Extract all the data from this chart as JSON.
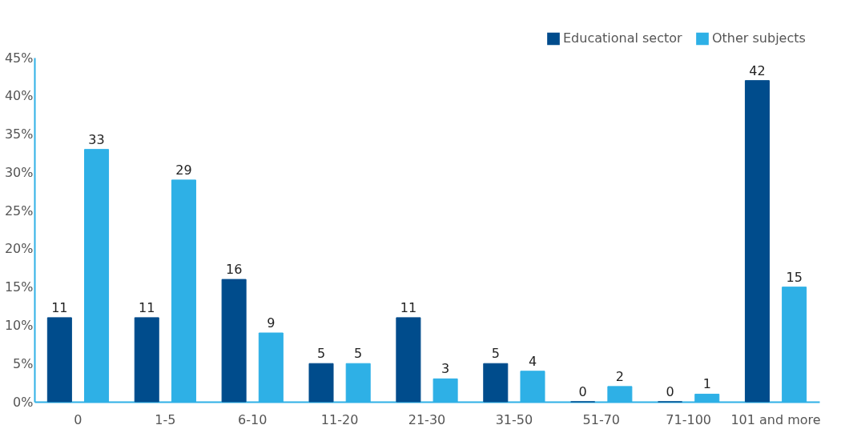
{
  "chart_data": {
    "type": "bar",
    "categories": [
      "0",
      "1-5",
      "6-10",
      "11-20",
      "21-30",
      "31-50",
      "51-70",
      "71-100",
      "101 and more"
    ],
    "series": [
      {
        "name": "Educational sector",
        "color": "#004c8c",
        "values": [
          11,
          11,
          16,
          5,
          11,
          5,
          0,
          0,
          42
        ]
      },
      {
        "name": "Other subjects",
        "color": "#2eb0e6",
        "values": [
          33,
          29,
          9,
          5,
          3,
          4,
          2,
          1,
          15
        ]
      }
    ],
    "ylim": [
      0,
      45
    ],
    "yticks": [
      {
        "value": 0,
        "label": "0%"
      },
      {
        "value": 5,
        "label": "5%"
      },
      {
        "value": 10,
        "label": "10%"
      },
      {
        "value": 15,
        "label": "15%"
      },
      {
        "value": 20,
        "label": "20%"
      },
      {
        "value": 25,
        "label": "25%"
      },
      {
        "value": 30,
        "label": "30%"
      },
      {
        "value": 35,
        "label": "35%"
      },
      {
        "value": 40,
        "label": "40%"
      },
      {
        "value": 45,
        "label": "45%"
      }
    ],
    "data_labels": true,
    "legend": "top right",
    "grid": false
  }
}
